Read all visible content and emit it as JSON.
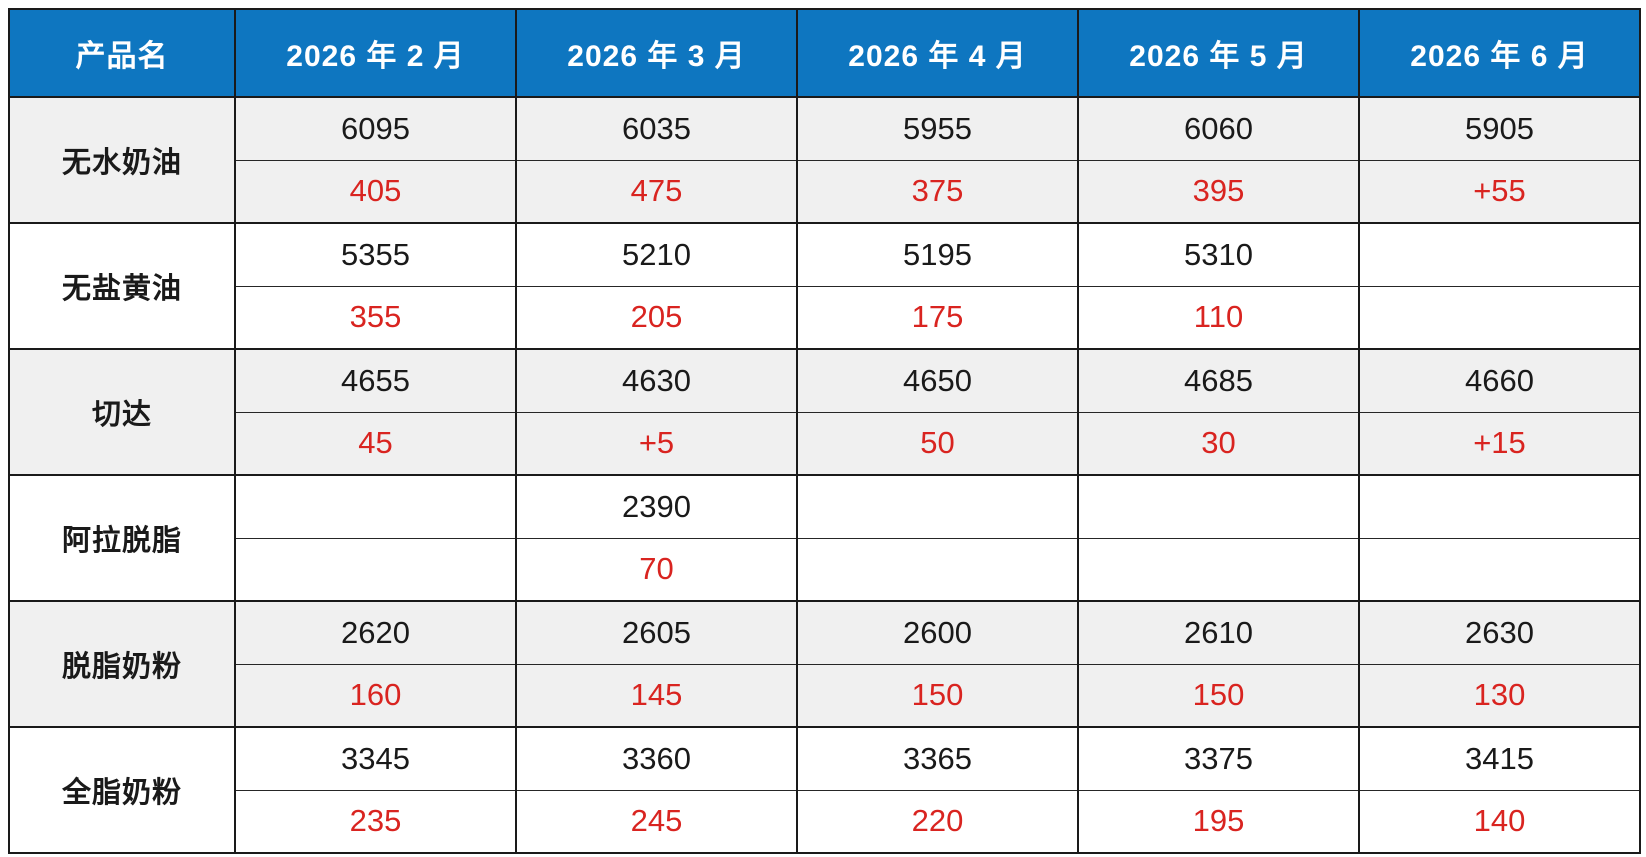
{
  "table": {
    "header": {
      "product_col": "产品名",
      "months": [
        "2026 年 2 月",
        "2026 年 3 月",
        "2026 年 4 月",
        "2026 年 5 月",
        "2026 年 6 月"
      ]
    },
    "rows": [
      {
        "name": "无水奶油",
        "prices": [
          "6095",
          "6035",
          "5955",
          "6060",
          "5905"
        ],
        "changes": [
          "405",
          "475",
          "375",
          "395",
          "+55"
        ]
      },
      {
        "name": "无盐黄油",
        "prices": [
          "5355",
          "5210",
          "5195",
          "5310",
          ""
        ],
        "changes": [
          "355",
          "205",
          "175",
          "110",
          ""
        ]
      },
      {
        "name": "切达",
        "prices": [
          "4655",
          "4630",
          "4650",
          "4685",
          "4660"
        ],
        "changes": [
          "45",
          "+5",
          "50",
          "30",
          "+15"
        ]
      },
      {
        "name": "阿拉脱脂",
        "prices": [
          "",
          "2390",
          "",
          "",
          ""
        ],
        "changes": [
          "",
          "70",
          "",
          "",
          ""
        ]
      },
      {
        "name": "脱脂奶粉",
        "prices": [
          "2620",
          "2605",
          "2600",
          "2610",
          "2630"
        ],
        "changes": [
          "160",
          "145",
          "150",
          "150",
          "130"
        ]
      },
      {
        "name": "全脂奶粉",
        "prices": [
          "3345",
          "3360",
          "3365",
          "3375",
          "3415"
        ],
        "changes": [
          "235",
          "245",
          "220",
          "195",
          "140"
        ]
      }
    ],
    "colors": {
      "header_bg": "#0e76c0",
      "header_text": "#ffffff",
      "band_gray": "#f0f0f0",
      "band_white": "#ffffff",
      "price_text": "#1a1a1a",
      "change_text": "#d92420",
      "border": "#1a1a1a"
    }
  },
  "chart_data": {
    "type": "table",
    "title": "",
    "categories": [
      "2026 年 2 月",
      "2026 年 3 月",
      "2026 年 4 月",
      "2026 年 5 月",
      "2026 年 6 月"
    ],
    "row_header_label": "产品名",
    "series": [
      {
        "name": "无水奶油",
        "prices": [
          6095,
          6035,
          5955,
          6060,
          5905
        ],
        "changes": [
          "405",
          "475",
          "375",
          "395",
          "+55"
        ]
      },
      {
        "name": "无盐黄油",
        "prices": [
          5355,
          5210,
          5195,
          5310,
          null
        ],
        "changes": [
          "355",
          "205",
          "175",
          "110",
          null
        ]
      },
      {
        "name": "切达",
        "prices": [
          4655,
          4630,
          4650,
          4685,
          4660
        ],
        "changes": [
          "45",
          "+5",
          "50",
          "30",
          "+15"
        ]
      },
      {
        "name": "阿拉脱脂",
        "prices": [
          null,
          2390,
          null,
          null,
          null
        ],
        "changes": [
          null,
          "70",
          null,
          null,
          null
        ]
      },
      {
        "name": "脱脂奶粉",
        "prices": [
          2620,
          2605,
          2600,
          2610,
          2630
        ],
        "changes": [
          "160",
          "145",
          "150",
          "150",
          "130"
        ]
      },
      {
        "name": "全脂奶粉",
        "prices": [
          3345,
          3360,
          3365,
          3375,
          3415
        ],
        "changes": [
          "235",
          "245",
          "220",
          "195",
          "140"
        ]
      }
    ],
    "layout": {
      "price_row_color": "#1a1a1a",
      "change_row_color": "#d92420",
      "header_bg": "#0e76c0",
      "banding": [
        "gray",
        "white",
        "gray",
        "white",
        "gray",
        "white"
      ]
    }
  }
}
